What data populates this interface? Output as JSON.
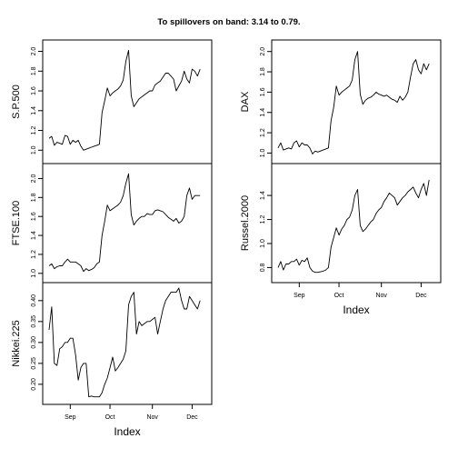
{
  "chart_data": {
    "type": "line",
    "title": "To spillovers on band: 3.14 to 0.79.",
    "xlabel": "Index",
    "x_ticks": [
      "Sep",
      "Oct",
      "Nov",
      "Dec"
    ],
    "x_tick_positions": [
      8,
      23,
      39,
      54
    ],
    "x_range": [
      0,
      59
    ],
    "grid": false,
    "columns": [
      {
        "panels": [
          {
            "ylabel": "S.P.500",
            "ylim": [
              0.92,
              2.06
            ],
            "yticks": [
              "1.0",
              "1.2",
              "1.4",
              "1.6",
              "1.8",
              "2.0"
            ],
            "x": [
              0,
              1,
              2,
              3,
              4,
              5,
              6,
              7,
              8,
              9,
              10,
              11,
              12,
              13,
              14,
              15,
              16,
              17,
              18,
              19,
              20,
              21,
              22,
              23,
              24,
              25,
              26,
              27,
              28,
              29,
              30,
              31,
              32,
              33,
              34,
              35,
              36,
              37,
              38,
              39,
              40,
              41,
              42,
              43,
              44,
              45,
              46,
              47,
              48,
              49,
              50,
              51,
              52,
              53,
              54,
              55,
              56,
              57
            ],
            "values": [
              1.12,
              1.14,
              1.05,
              1.08,
              1.07,
              1.06,
              1.15,
              1.14,
              1.06,
              1.1,
              1.08,
              1.1,
              1.04,
              1.0,
              1.01,
              1.02,
              1.03,
              1.04,
              1.05,
              1.06,
              1.38,
              1.5,
              1.63,
              1.55,
              1.58,
              1.6,
              1.62,
              1.65,
              1.71,
              1.9,
              2.01,
              1.55,
              1.44,
              1.48,
              1.52,
              1.54,
              1.56,
              1.58,
              1.6,
              1.6,
              1.66,
              1.68,
              1.7,
              1.74,
              1.78,
              1.78,
              1.75,
              1.72,
              1.6,
              1.65,
              1.7,
              1.8,
              1.72,
              1.68,
              1.82,
              1.8,
              1.75,
              1.82
            ]
          },
          {
            "ylabel": "FTSE.100",
            "ylim": [
              0.96,
              2.1
            ],
            "yticks": [
              "1.0",
              "1.2",
              "1.4",
              "1.6",
              "1.8",
              "2.0"
            ],
            "x": [
              0,
              1,
              2,
              3,
              4,
              5,
              6,
              7,
              8,
              9,
              10,
              11,
              12,
              13,
              14,
              15,
              16,
              17,
              18,
              19,
              20,
              21,
              22,
              23,
              24,
              25,
              26,
              27,
              28,
              29,
              30,
              31,
              32,
              33,
              34,
              35,
              36,
              37,
              38,
              39,
              40,
              41,
              42,
              43,
              44,
              45,
              46,
              47,
              48,
              49,
              50,
              51,
              52,
              53,
              54,
              55,
              56,
              57
            ],
            "values": [
              1.08,
              1.1,
              1.05,
              1.07,
              1.08,
              1.08,
              1.12,
              1.15,
              1.12,
              1.12,
              1.12,
              1.1,
              1.08,
              1.02,
              1.05,
              1.03,
              1.04,
              1.06,
              1.1,
              1.12,
              1.4,
              1.55,
              1.72,
              1.66,
              1.68,
              1.7,
              1.72,
              1.75,
              1.82,
              1.95,
              2.05,
              1.62,
              1.51,
              1.55,
              1.58,
              1.6,
              1.6,
              1.63,
              1.62,
              1.62,
              1.66,
              1.67,
              1.66,
              1.65,
              1.62,
              1.59,
              1.57,
              1.55,
              1.58,
              1.53,
              1.55,
              1.6,
              1.82,
              1.9,
              1.78,
              1.82,
              1.82,
              1.82
            ]
          },
          {
            "ylabel": "Nikkei.225",
            "ylim": [
              0.165,
              0.43
            ],
            "yticks": [
              "0.20",
              "0.25",
              "0.30",
              "0.35",
              "0.40"
            ],
            "x": [
              0,
              1,
              2,
              3,
              4,
              5,
              6,
              7,
              8,
              9,
              10,
              11,
              12,
              13,
              14,
              15,
              16,
              17,
              18,
              19,
              20,
              21,
              22,
              23,
              24,
              25,
              26,
              27,
              28,
              29,
              30,
              31,
              32,
              33,
              34,
              35,
              36,
              37,
              38,
              39,
              40,
              41,
              42,
              43,
              44,
              45,
              46,
              47,
              48,
              49,
              50,
              51,
              52,
              53,
              54,
              55,
              56,
              57
            ],
            "values": [
              0.33,
              0.385,
              0.25,
              0.245,
              0.285,
              0.29,
              0.3,
              0.3,
              0.31,
              0.31,
              0.27,
              0.21,
              0.24,
              0.25,
              0.25,
              0.17,
              0.172,
              0.17,
              0.17,
              0.17,
              0.18,
              0.2,
              0.215,
              0.24,
              0.265,
              0.232,
              0.24,
              0.25,
              0.26,
              0.28,
              0.39,
              0.41,
              0.42,
              0.32,
              0.35,
              0.34,
              0.345,
              0.35,
              0.35,
              0.355,
              0.36,
              0.32,
              0.35,
              0.38,
              0.4,
              0.41,
              0.42,
              0.42,
              0.42,
              0.43,
              0.4,
              0.38,
              0.38,
              0.41,
              0.4,
              0.39,
              0.38,
              0.4
            ]
          }
        ]
      },
      {
        "panels": [
          {
            "ylabel": "DAX",
            "ylim": [
              0.95,
              2.06
            ],
            "yticks": [
              "1.0",
              "1.2",
              "1.4",
              "1.6",
              "1.8",
              "2.0"
            ],
            "x": [
              0,
              1,
              2,
              3,
              4,
              5,
              6,
              7,
              8,
              9,
              10,
              11,
              12,
              13,
              14,
              15,
              16,
              17,
              18,
              19,
              20,
              21,
              22,
              23,
              24,
              25,
              26,
              27,
              28,
              29,
              30,
              31,
              32,
              33,
              34,
              35,
              36,
              37,
              38,
              39,
              40,
              41,
              42,
              43,
              44,
              45,
              46,
              47,
              48,
              49,
              50,
              51,
              52,
              53,
              54,
              55,
              56,
              57
            ],
            "values": [
              1.05,
              1.1,
              1.03,
              1.04,
              1.05,
              1.04,
              1.1,
              1.12,
              1.06,
              1.1,
              1.08,
              1.08,
              1.05,
              0.99,
              1.02,
              1.01,
              1.02,
              1.03,
              1.04,
              1.05,
              1.32,
              1.45,
              1.66,
              1.57,
              1.6,
              1.62,
              1.64,
              1.66,
              1.72,
              1.92,
              2.0,
              1.58,
              1.48,
              1.52,
              1.54,
              1.55,
              1.57,
              1.6,
              1.58,
              1.57,
              1.56,
              1.57,
              1.55,
              1.53,
              1.52,
              1.5,
              1.56,
              1.52,
              1.55,
              1.6,
              1.75,
              1.88,
              1.92,
              1.82,
              1.78,
              1.88,
              1.82,
              1.88
            ]
          },
          {
            "ylabel": "Russel.2000",
            "ylim": [
              0.72,
              1.62
            ],
            "yticks": [
              "0.8",
              "1.0",
              "1.2",
              "1.4"
            ],
            "x": [
              0,
              1,
              2,
              3,
              4,
              5,
              6,
              7,
              8,
              9,
              10,
              11,
              12,
              13,
              14,
              15,
              16,
              17,
              18,
              19,
              20,
              21,
              22,
              23,
              24,
              25,
              26,
              27,
              28,
              29,
              30,
              31,
              32,
              33,
              34,
              35,
              36,
              37,
              38,
              39,
              40,
              41,
              42,
              43,
              44,
              45,
              46,
              47,
              48,
              49,
              50,
              51,
              52,
              53,
              54,
              55,
              56,
              57
            ],
            "values": [
              0.8,
              0.85,
              0.78,
              0.83,
              0.83,
              0.85,
              0.85,
              0.87,
              0.82,
              0.86,
              0.85,
              0.88,
              0.8,
              0.77,
              0.76,
              0.76,
              0.765,
              0.77,
              0.78,
              0.8,
              0.97,
              1.05,
              1.13,
              1.07,
              1.12,
              1.15,
              1.2,
              1.22,
              1.28,
              1.4,
              1.45,
              1.15,
              1.1,
              1.12,
              1.15,
              1.18,
              1.2,
              1.25,
              1.28,
              1.3,
              1.35,
              1.38,
              1.42,
              1.4,
              1.38,
              1.32,
              1.35,
              1.38,
              1.4,
              1.43,
              1.45,
              1.47,
              1.42,
              1.38,
              1.45,
              1.5,
              1.4,
              1.53
            ]
          }
        ]
      }
    ]
  }
}
